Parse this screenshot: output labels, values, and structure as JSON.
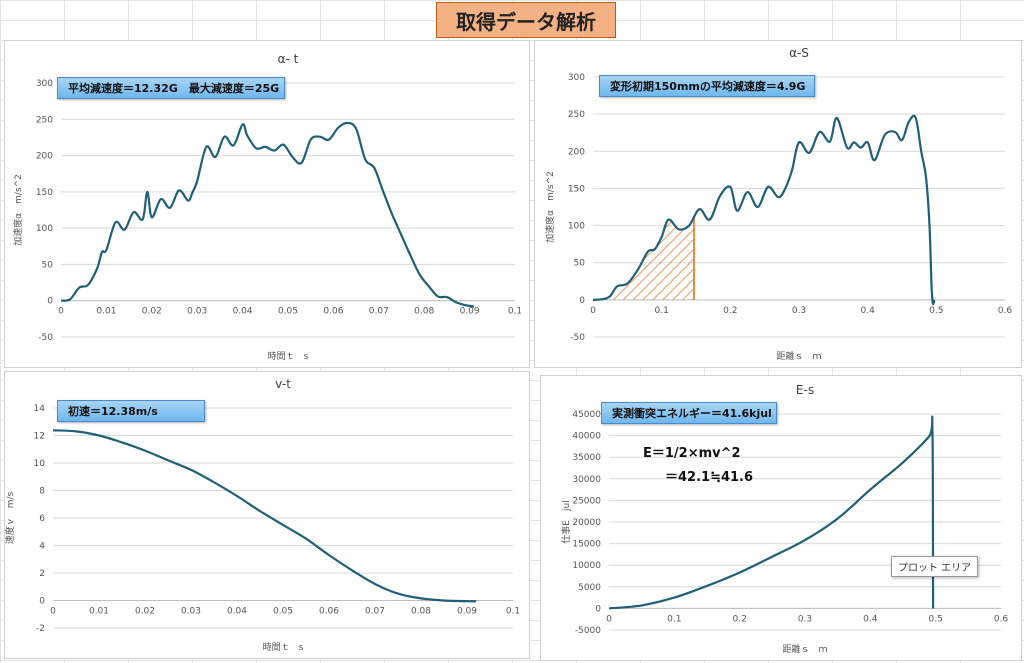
{
  "page_title": "取得データ解析",
  "chart_data": [
    {
      "id": "a-t",
      "type": "line",
      "title": "α- t",
      "xlabel": "時間ｔ　s",
      "ylabel": "加速度α　m/s^2",
      "xlim": [
        0,
        0.1
      ],
      "ylim": [
        -50,
        300
      ],
      "xticks": [
        0,
        0.01,
        0.02,
        0.03,
        0.04,
        0.05,
        0.06,
        0.07,
        0.08,
        0.09,
        0.1
      ],
      "yticks": [
        -50,
        0,
        50,
        100,
        150,
        200,
        250,
        300
      ],
      "grid": true,
      "annotation": "平均減速度＝12.32G　最大減速度＝25G",
      "series": [
        {
          "color": "#1f5f7a",
          "x": [
            0,
            0.002,
            0.004,
            0.006,
            0.008,
            0.009,
            0.01,
            0.012,
            0.014,
            0.016,
            0.018,
            0.019,
            0.02,
            0.022,
            0.024,
            0.026,
            0.028,
            0.029,
            0.03,
            0.032,
            0.034,
            0.036,
            0.038,
            0.04,
            0.041,
            0.043,
            0.045,
            0.047,
            0.049,
            0.051,
            0.053,
            0.055,
            0.057,
            0.059,
            0.061,
            0.063,
            0.065,
            0.067,
            0.069,
            0.071,
            0.073,
            0.075,
            0.077,
            0.079,
            0.081,
            0.083,
            0.085,
            0.087,
            0.089,
            0.091
          ],
          "y": [
            0,
            2,
            18,
            22,
            45,
            67,
            70,
            108,
            98,
            122,
            112,
            150,
            115,
            140,
            128,
            152,
            138,
            150,
            165,
            212,
            198,
            226,
            214,
            243,
            228,
            210,
            212,
            207,
            215,
            198,
            190,
            222,
            226,
            222,
            238,
            245,
            237,
            195,
            183,
            150,
            118,
            90,
            62,
            36,
            20,
            6,
            5,
            -2,
            -6,
            -8
          ]
        }
      ]
    },
    {
      "id": "a-S",
      "type": "line",
      "title": "α-S",
      "xlabel": "距離ｓ　ｍ",
      "ylabel": "加速度α　m/s^2",
      "xlim": [
        0,
        0.6
      ],
      "ylim": [
        -50,
        300
      ],
      "xticks": [
        0,
        0.1,
        0.2,
        0.3,
        0.4,
        0.5,
        0.6
      ],
      "yticks": [
        -50,
        0,
        50,
        100,
        150,
        200,
        250,
        300
      ],
      "grid": true,
      "annotation": "変形初期150mmの平均減速度＝4.9G",
      "hatched_region": [
        0.025,
        0.147
      ],
      "series": [
        {
          "color": "#1f5f7a",
          "x": [
            0,
            0.015,
            0.025,
            0.035,
            0.05,
            0.065,
            0.08,
            0.09,
            0.1,
            0.11,
            0.125,
            0.14,
            0.155,
            0.17,
            0.185,
            0.2,
            0.21,
            0.225,
            0.24,
            0.255,
            0.27,
            0.28,
            0.29,
            0.3,
            0.315,
            0.33,
            0.345,
            0.355,
            0.37,
            0.38,
            0.39,
            0.4,
            0.41,
            0.425,
            0.44,
            0.45,
            0.46,
            0.47,
            0.478,
            0.485,
            0.49,
            0.493,
            0.495,
            0.497
          ],
          "y": [
            0,
            1,
            5,
            18,
            22,
            40,
            65,
            68,
            85,
            108,
            95,
            100,
            122,
            108,
            140,
            152,
            120,
            145,
            125,
            152,
            138,
            150,
            175,
            212,
            198,
            226,
            213,
            245,
            205,
            212,
            205,
            212,
            188,
            222,
            226,
            215,
            240,
            245,
            200,
            165,
            100,
            20,
            -5,
            0
          ]
        }
      ]
    },
    {
      "id": "v-t",
      "type": "line",
      "title": "v-t",
      "xlabel": "時間ｔ　s",
      "ylabel": "速度ｖ　m/s",
      "xlim": [
        0,
        0.1
      ],
      "ylim": [
        -2,
        14
      ],
      "xticks": [
        0,
        0.01,
        0.02,
        0.03,
        0.04,
        0.05,
        0.06,
        0.07,
        0.08,
        0.09,
        0.1
      ],
      "yticks": [
        -2,
        0,
        2,
        4,
        6,
        8,
        10,
        12,
        14
      ],
      "grid": true,
      "annotation": "初速＝12.38m/s",
      "series": [
        {
          "color": "#1f5f7a",
          "x": [
            0,
            0.005,
            0.01,
            0.015,
            0.02,
            0.025,
            0.03,
            0.035,
            0.04,
            0.045,
            0.05,
            0.055,
            0.06,
            0.065,
            0.07,
            0.075,
            0.08,
            0.085,
            0.09,
            0.092
          ],
          "y": [
            12.38,
            12.3,
            12.0,
            11.5,
            10.9,
            10.2,
            9.5,
            8.6,
            7.6,
            6.5,
            5.5,
            4.5,
            3.3,
            2.2,
            1.2,
            0.5,
            0.15,
            0.0,
            -0.05,
            -0.05
          ]
        }
      ]
    },
    {
      "id": "E-s",
      "type": "line",
      "title": "E-s",
      "xlabel": "距離ｓ　ｍ",
      "ylabel": "仕事E　jul",
      "xlim": [
        0,
        0.6
      ],
      "ylim": [
        -5000,
        45000
      ],
      "xticks": [
        0,
        0.1,
        0.2,
        0.3,
        0.4,
        0.5,
        0.6
      ],
      "yticks": [
        -5000,
        0,
        5000,
        10000,
        15000,
        20000,
        25000,
        30000,
        35000,
        40000,
        45000
      ],
      "grid": true,
      "annotation": "実測衝突エネルギー＝41.6kjul",
      "formula_lines": [
        "E＝1/2×mv^2",
        "＝42.1≒41.6"
      ],
      "tooltip": "プロット エリア",
      "series": [
        {
          "color": "#1f5f7a",
          "x": [
            0,
            0.05,
            0.1,
            0.15,
            0.2,
            0.25,
            0.3,
            0.35,
            0.4,
            0.45,
            0.49,
            0.495,
            0.496
          ],
          "y": [
            0,
            700,
            2500,
            5200,
            8300,
            12000,
            15800,
            20800,
            27500,
            33800,
            39800,
            41600,
            0
          ]
        }
      ]
    }
  ]
}
